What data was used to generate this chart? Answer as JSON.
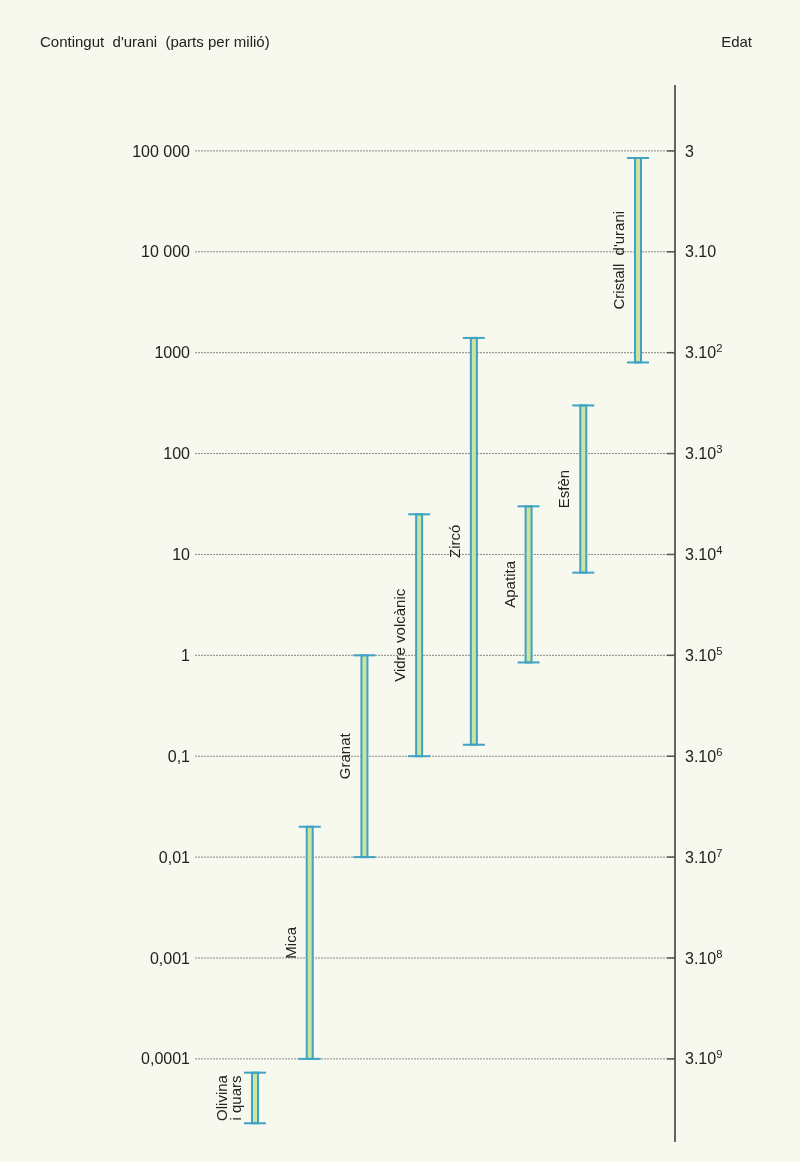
{
  "chart_data": {
    "type": "bar",
    "ylabel": "Contingut  d'urani  (parts per milió)",
    "y2label": "Edat",
    "categories": [
      "Olivina i quars",
      "Mica",
      "Granat",
      "Vidre volcànic",
      "Zircó",
      "Apatita",
      "Esfèn",
      "Cristall  d'urani"
    ],
    "base": [
      2.3e-05,
      0.0001,
      0.01,
      0.1,
      0.13,
      0.85,
      6.6,
      800
    ],
    "values": [
      5e-05,
      0.0199,
      0.99,
      24.9,
      1399.87,
      29.15,
      293.4,
      84200
    ],
    "color": "#cfe3a0",
    "log": true,
    "ylim": [
      1.5e-05,
      450000
    ],
    "yticks": [
      {
        "value": 100000,
        "label": "100 000"
      },
      {
        "value": 10000,
        "label": "10 000"
      },
      1000,
      100,
      10,
      1,
      {
        "value": 0.1,
        "label": "0,1"
      },
      {
        "value": 0.01,
        "label": "0,01"
      },
      {
        "value": 0.001,
        "label": "0,001"
      },
      {
        "value": 0.0001,
        "label": "0,0001"
      }
    ],
    "annotations": [
      "3",
      "3.10",
      "3.10$^{2}$",
      "3.10$^{3}$",
      "3.10$^{4}$",
      "3.10$^{5}$",
      "3.10$^{6}$",
      "3.10$^{7}$",
      "3.10$^{8}$",
      "3.10$^{9}$"
    ],
    "grid": "y"
  }
}
